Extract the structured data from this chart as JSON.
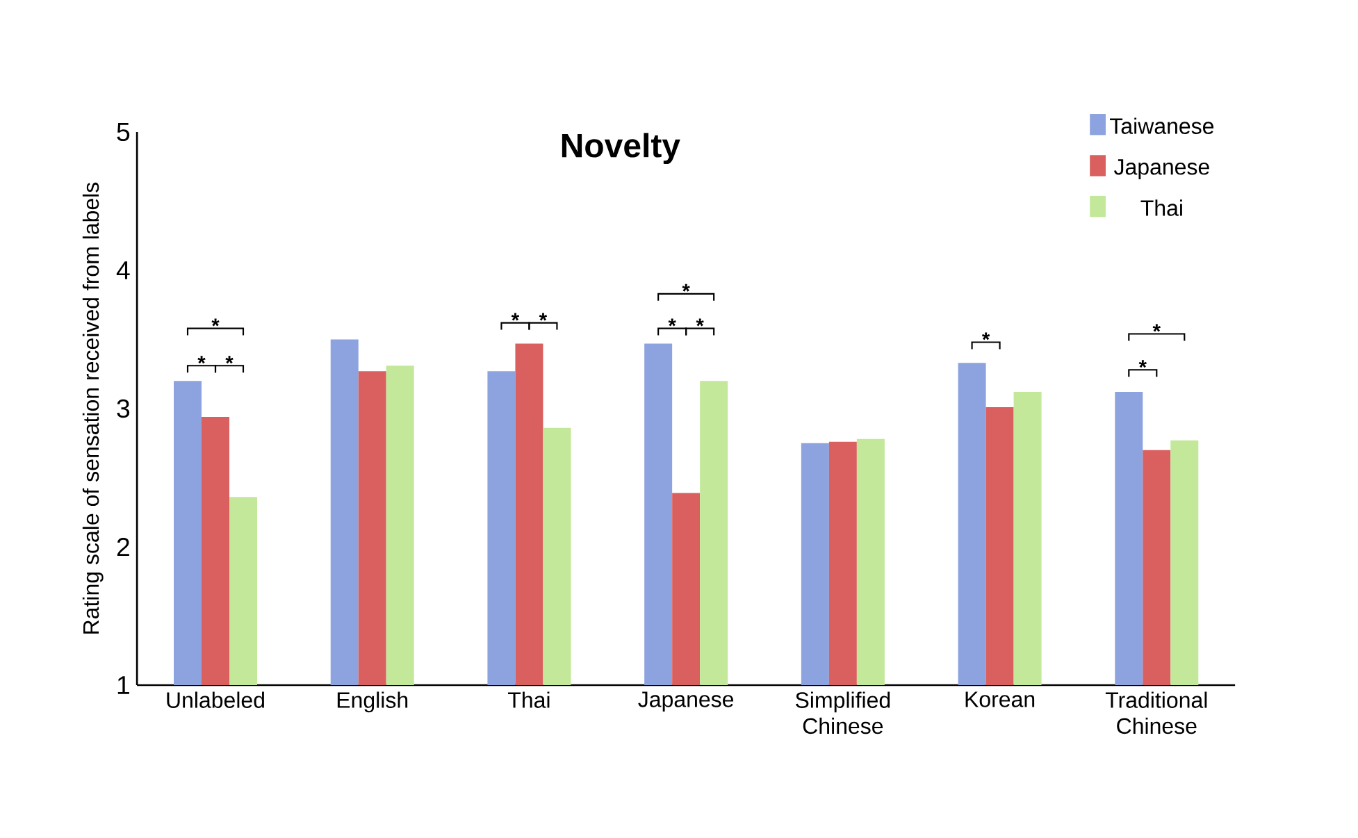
{
  "chart_data": {
    "type": "bar",
    "title": "Novelty",
    "ylabel": "Rating scale of sensation received from labels",
    "categories": [
      "Unlabeled",
      "English",
      "Thai",
      "Japanese",
      "Simplified Chinese",
      "Korean",
      "Traditional Chinese"
    ],
    "series": [
      {
        "name": "Taiwanese",
        "color": "#8da3e0",
        "values": [
          3.2,
          3.5,
          3.27,
          3.47,
          2.75,
          3.33,
          3.12
        ]
      },
      {
        "name": "Japanese",
        "color": "#d9605e",
        "values": [
          2.94,
          3.27,
          3.47,
          2.39,
          2.76,
          3.01,
          2.7
        ]
      },
      {
        "name": "Thai",
        "color": "#c3e89a",
        "values": [
          2.36,
          3.31,
          2.86,
          3.2,
          2.78,
          3.12,
          2.77
        ]
      }
    ],
    "ylim": [
      1,
      5
    ],
    "yticks": [
      1,
      2,
      3,
      4,
      5
    ],
    "grid": false,
    "legend": "top right",
    "annotations": [
      "*",
      "*",
      "*",
      "*",
      "*",
      "*",
      "*",
      "*",
      "*",
      "*",
      "*"
    ]
  }
}
